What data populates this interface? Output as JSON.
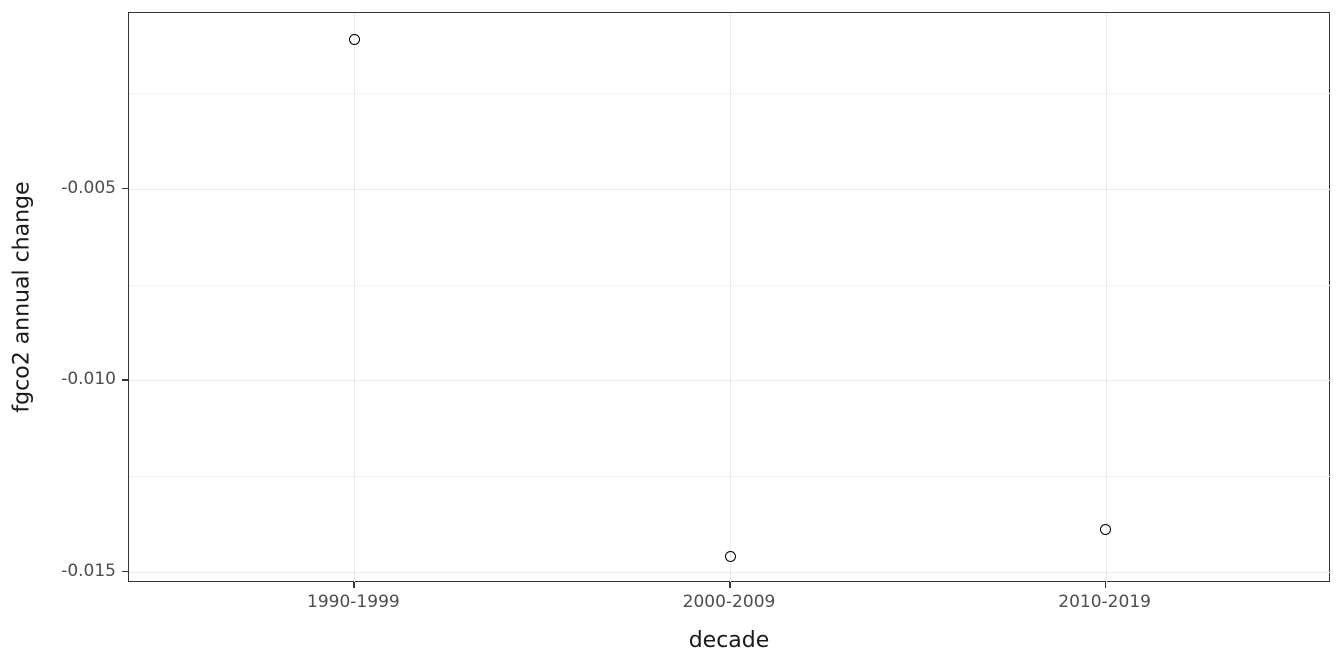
{
  "chart_data": {
    "type": "scatter",
    "title": "",
    "xlabel": "decade",
    "ylabel": "fgco2 annual change",
    "categories": [
      "1990-1999",
      "2000-2009",
      "2010-2019"
    ],
    "values": [
      -0.0011,
      -0.0146,
      -0.0139
    ],
    "yticks": [
      -0.005,
      -0.01,
      -0.015
    ],
    "ytick_labels": [
      "-0.005",
      "-0.010",
      "-0.015"
    ],
    "yticks_minor": [
      -0.0025,
      -0.0075,
      -0.0125
    ],
    "ylim": [
      -0.0153,
      -0.0004
    ],
    "grid": true,
    "legend": "none",
    "style": {
      "point_color": "#000000",
      "panel_border_color": "#333333",
      "grid_major_color": "#e8e8e8",
      "grid_minor_color": "#f4f4f4",
      "tick_color": "#333333",
      "tick_label_color": "#4d4d4d",
      "axis_title_color": "#1a1a1a",
      "background": "#ffffff"
    }
  }
}
